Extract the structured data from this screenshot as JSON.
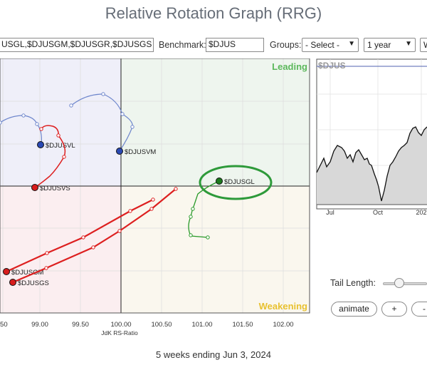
{
  "title": "Relative Rotation Graph (RRG)",
  "toolbar": {
    "symbols_value": "USGL,$DJUSGM,$DJUSGR,$DJUSGS",
    "benchmark_label": "Benchmark:",
    "benchmark_value": "$DJUS",
    "groups_label": "Groups:",
    "groups_selected": "- Select -",
    "period_selected": "1 year",
    "extra_selected": "W"
  },
  "quadrants": {
    "leading": "Leading",
    "weakening": "Weakening"
  },
  "colors": {
    "leading": "#eef5ee",
    "weakening": "#faf7ee",
    "lagging": "#fbeef0",
    "improving": "#efeff9",
    "leading_text": "#5cb85c",
    "weakening_text": "#e8c130",
    "red_tail": "#dd1f1f",
    "blue_tail": "#6e86cc",
    "green_tail": "#2a9a2a",
    "highlight_ellipse": "#2e9a3a"
  },
  "x_axis": {
    "label": "JdK RS-Ratio",
    "ticks": [
      ".50",
      "99.00",
      "99.50",
      "100.00",
      "100.50",
      "101.00",
      "101.50",
      "102.00"
    ]
  },
  "symbols": {
    "djusvl": "$DJUSVL",
    "djusvm": "$DJUSVM",
    "djusvs": "$DJUSVS",
    "djusgl": "$DJUSGL",
    "djusgm": "$DJUSGM",
    "djusgs": "$DJUSGS"
  },
  "price_chart": {
    "symbol": "$DJUS",
    "months": [
      "Jul",
      "Oct",
      "202"
    ]
  },
  "controls": {
    "tail_length_label": "Tail Length:",
    "animate_label": "animate",
    "plus_label": "+",
    "minus_label": "-"
  },
  "caption": "5 weeks ending Jun 3, 2024"
}
